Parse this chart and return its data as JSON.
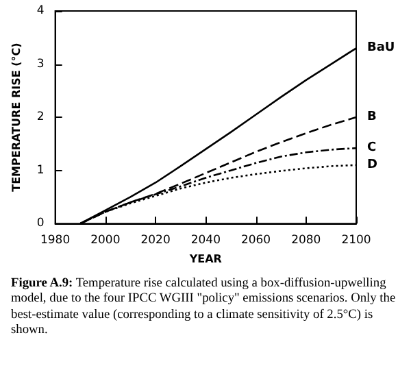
{
  "chart_data": {
    "type": "line",
    "xlabel": "YEAR",
    "ylabel": "TEMPERATURE RISE (°C)",
    "xlim": [
      1980,
      2100
    ],
    "xticks": [
      1980,
      2000,
      2020,
      2040,
      2060,
      2080,
      2100
    ],
    "ylim": [
      0,
      4
    ],
    "yticks": [
      0,
      1,
      2,
      3,
      4
    ],
    "grid": false,
    "legend": false,
    "marker": "none",
    "x": [
      1990,
      2000,
      2010,
      2020,
      2030,
      2040,
      2050,
      2060,
      2070,
      2080,
      2090,
      2100
    ],
    "series": [
      {
        "name": "BaU",
        "color": "#000000",
        "line_style": "solid",
        "values": [
          0,
          0.25,
          0.5,
          0.77,
          1.08,
          1.4,
          1.72,
          2.05,
          2.38,
          2.7,
          3.0,
          3.3
        ]
      },
      {
        "name": "B",
        "color": "#000000",
        "line_style": "dashed",
        "values": [
          0,
          0.22,
          0.4,
          0.56,
          0.75,
          0.95,
          1.15,
          1.35,
          1.53,
          1.7,
          1.86,
          2.0
        ]
      },
      {
        "name": "C",
        "color": "#000000",
        "line_style": "dashdot",
        "values": [
          0,
          0.22,
          0.4,
          0.55,
          0.7,
          0.86,
          1.0,
          1.14,
          1.26,
          1.34,
          1.39,
          1.42
        ]
      },
      {
        "name": "D",
        "color": "#000000",
        "line_style": "dotted",
        "values": [
          0,
          0.22,
          0.38,
          0.52,
          0.66,
          0.77,
          0.86,
          0.93,
          0.99,
          1.04,
          1.08,
          1.1
        ]
      }
    ],
    "annotations": [
      "Figure A.9: Temperature rise calculated using a box-diffusion-upwelling model, due to the four IPCC WGIII \"policy\" emissions scenarios.  Only the best-estimate value (corresponding to a climate sensitivity of 2.5°C) is shown."
    ]
  }
}
